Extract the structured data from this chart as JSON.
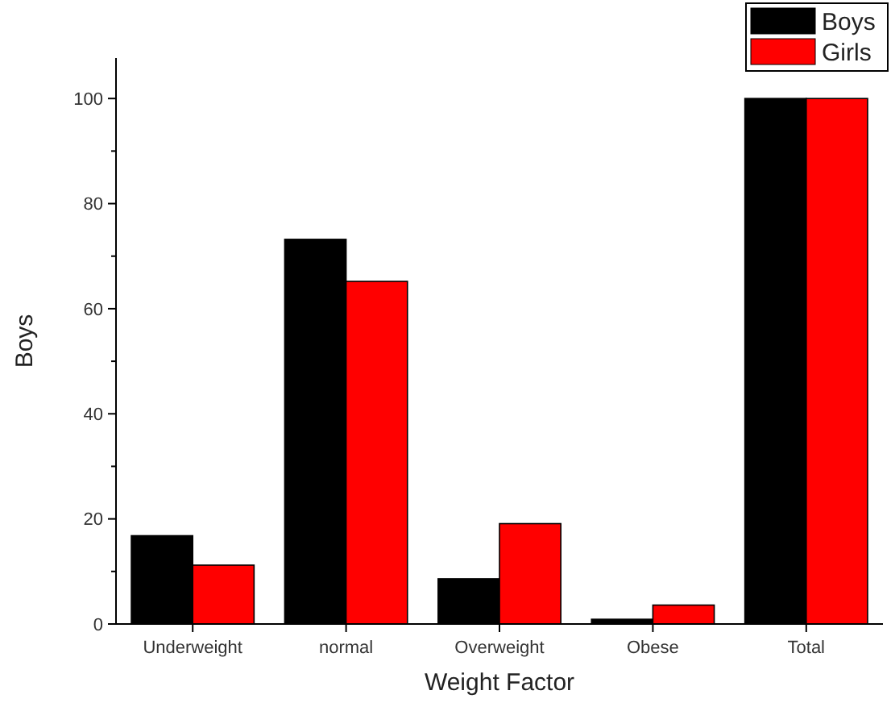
{
  "chart_data": {
    "type": "bar",
    "xlabel": "Weight Factor",
    "ylabel": "Boys",
    "categories": [
      "Underweight",
      "normal",
      "Overweight",
      "Obese",
      "Total"
    ],
    "series": [
      {
        "name": "Boys",
        "color": "#000000",
        "values": [
          16.8,
          73.2,
          8.6,
          0.9,
          100
        ]
      },
      {
        "name": "Girls",
        "color": "#ff0000",
        "values": [
          11.2,
          65.2,
          19.1,
          3.6,
          100
        ]
      }
    ],
    "ylim": [
      0,
      107.7
    ],
    "yticks": [
      0,
      {
        "value": 10,
        "label": null
      },
      20,
      {
        "value": 30,
        "label": null
      },
      40,
      {
        "value": 50,
        "label": null
      },
      60,
      {
        "value": 70,
        "label": null
      },
      80,
      {
        "value": 90,
        "label": null
      },
      100
    ],
    "grid": false,
    "legend": "top right"
  }
}
